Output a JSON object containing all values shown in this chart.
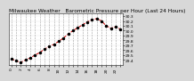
{
  "title": "Milwaukee Weather   Barometric Pressure per Hour (Last 24 Hours)",
  "x": [
    0,
    1,
    2,
    3,
    4,
    5,
    6,
    7,
    8,
    9,
    10,
    11,
    12,
    13,
    14,
    15,
    16,
    17,
    18,
    19,
    20,
    21,
    22,
    23
  ],
  "y": [
    29.42,
    29.38,
    29.35,
    29.4,
    29.44,
    29.5,
    29.55,
    29.62,
    29.68,
    29.72,
    29.78,
    29.85,
    29.93,
    30.0,
    30.06,
    30.12,
    30.18,
    30.22,
    30.25,
    30.2,
    30.1,
    30.05,
    30.08,
    30.03
  ],
  "ylim": [
    29.3,
    30.35
  ],
  "yticks": [
    29.4,
    29.5,
    29.6,
    29.7,
    29.8,
    29.9,
    30.0,
    30.1,
    30.2,
    30.3
  ],
  "ytick_labels": [
    "29.4",
    "29.5",
    "29.6",
    "29.7",
    "29.8",
    "29.9",
    "30.0",
    "30.1",
    "30.2",
    "30.3"
  ],
  "xticks": [
    0,
    1,
    2,
    3,
    4,
    5,
    6,
    7,
    8,
    9,
    10,
    11,
    12,
    13,
    14,
    15,
    16,
    17,
    18,
    19,
    20,
    21,
    22,
    23
  ],
  "line_color": "#cc0000",
  "marker_color": "#000000",
  "bg_color": "#d8d8d8",
  "plot_bg_color": "#ffffff",
  "grid_color": "#888888",
  "title_fontsize": 4.2,
  "tick_fontsize": 3.2,
  "line_width": 0.7,
  "marker_size": 1.5
}
